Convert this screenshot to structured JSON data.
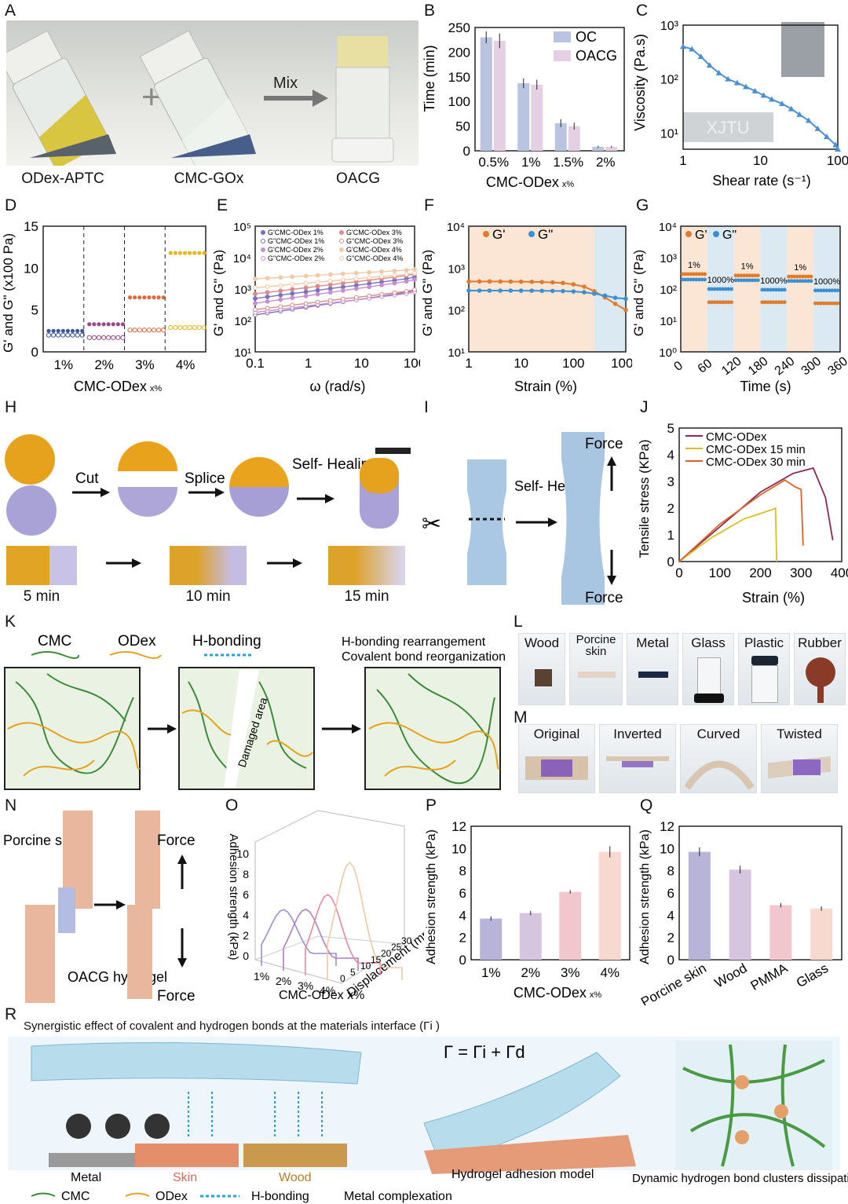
{
  "panels": {
    "A": {
      "label": "A",
      "items": [
        "ODex-APTC",
        "CMC-GOx",
        "OACG"
      ],
      "mix": "Mix"
    },
    "B": {
      "label": "B",
      "ylabel": "Time (min)",
      "xlabel": "CMC-ODex",
      "xlabel_sub": "x%",
      "legend": [
        "OC",
        "OACG"
      ]
    },
    "C": {
      "label": "C",
      "ylabel": "Viscosity (Pa.s)",
      "xlabel": "Shear rate (s⁻¹)",
      "print_text": "XJTU"
    },
    "D": {
      "label": "D",
      "ylabel": "G' and G\" (x100 Pa)",
      "xlabel": "CMC-ODex",
      "xlabel_sub": "x%"
    },
    "E": {
      "label": "E",
      "ylabel": "G' and G\" (Pa)",
      "xlabel": "ω (rad/s)",
      "legend": [
        "G'CMC-ODex 1%",
        "G\"CMC-ODex 1%",
        "G'CMC-ODex 2%",
        "G\"CMC-ODex 2%",
        "G'CMC-ODex 3%",
        "G\"CMC-ODex 3%",
        "G'CMC-ODex 4%",
        "G\"CMC-ODex 4%"
      ]
    },
    "F": {
      "label": "F",
      "ylabel": "G' and G\" (Pa)",
      "xlabel": "Strain (%)",
      "legend": [
        "G'",
        "G\""
      ]
    },
    "G": {
      "label": "G",
      "ylabel": "G' and G\" (Pa)",
      "xlabel": "Time (s)",
      "legend": [
        "G'",
        "G\""
      ],
      "annot": [
        "1%",
        "1000%",
        "1%",
        "1000%",
        "1%",
        "1000%"
      ]
    },
    "H": {
      "label": "H",
      "steps": [
        "Cut",
        "Splice",
        "Self-\nHealing"
      ],
      "times": [
        "5 min",
        "10 min",
        "15 min"
      ]
    },
    "I": {
      "label": "I",
      "step": "Self-\nHealing",
      "force": "Force"
    },
    "J": {
      "label": "J",
      "ylabel": "Tensile stress (KPa)",
      "xlabel": "Strain (%)",
      "legend": [
        "CMC-ODex",
        "CMC-ODex 15 min",
        "CMC-ODex 30 min"
      ]
    },
    "K": {
      "label": "K",
      "legend": [
        "CMC",
        "ODex",
        "H-bonding"
      ],
      "title2": "H-bonding rearrangement",
      "title3": "Covalent bond reorganization",
      "damaged": "Damaged area"
    },
    "L": {
      "label": "L",
      "items": [
        "Wood",
        "Porcine skin",
        "Metal",
        "Glass",
        "Plastic",
        "Rubber"
      ]
    },
    "M": {
      "label": "M",
      "items": [
        "Original",
        "Inverted",
        "Curved",
        "Twisted"
      ]
    },
    "N": {
      "label": "N",
      "skin": "Porcine\nskin",
      "gel": "OACG\nhydrogel",
      "force": "Force"
    },
    "O": {
      "label": "O",
      "zlabel": "Adhesion strength (kPa)",
      "xlabel": "CMC-ODex x%",
      "ylabel": "Displacement (mm)"
    },
    "P": {
      "label": "P",
      "ylabel": "Adhesion strength (kPa)",
      "xlabel": "CMC-ODex",
      "xlabel_sub": "x%"
    },
    "Q": {
      "label": "Q",
      "ylabel": "Adhesion strength (kPa)"
    },
    "R": {
      "label": "R",
      "title": "Synergistic effect of covalent and hydrogen bonds at the materials interface (Γi )",
      "equation": "Γ = Γi + Γd",
      "substrates": [
        "Metal",
        "Skin",
        "Wood"
      ],
      "model": "Hydrogel adhesion model",
      "bulk": "Dynamic hydrogen bond clusters dissipating energy at the bulk (Γd)",
      "legend": [
        "CMC",
        "ODex",
        "H-bonding",
        "Metal complexation"
      ]
    }
  },
  "chart_data": [
    {
      "id": "B",
      "type": "bar",
      "categories": [
        "0.5%",
        "1%",
        "1.5%",
        "2%"
      ],
      "series": [
        {
          "name": "OC",
          "values": [
            230,
            137,
            56,
            8
          ],
          "err": [
            12,
            10,
            8,
            2
          ]
        },
        {
          "name": "OACG",
          "values": [
            223,
            134,
            50,
            8
          ],
          "err": [
            15,
            10,
            7,
            2
          ]
        }
      ],
      "ylim": [
        0,
        250
      ],
      "yticks": [
        0,
        50,
        100,
        150,
        200,
        250
      ]
    },
    {
      "id": "C",
      "type": "line",
      "xscale": "log",
      "yscale": "log",
      "x": [
        1,
        1.3,
        1.7,
        2.2,
        2.9,
        3.8,
        5,
        6.5,
        8.5,
        11,
        14,
        19,
        25,
        32,
        42,
        55,
        72,
        94,
        100
      ],
      "y": [
        400,
        360,
        260,
        180,
        130,
        100,
        85,
        72,
        60,
        50,
        42,
        35,
        28,
        22,
        17,
        12,
        8.5,
        6,
        5
      ],
      "xlim": [
        1,
        100
      ],
      "ylim": [
        5,
        1000
      ],
      "xticks": [
        1,
        10,
        100
      ],
      "yticks": [
        10,
        100,
        1000
      ]
    },
    {
      "id": "D",
      "type": "scatter",
      "groups": [
        "1%",
        "2%",
        "3%",
        "4%"
      ],
      "Gp": [
        2.5,
        3.3,
        6.5,
        11.8
      ],
      "Gpp": [
        2.0,
        1.7,
        2.6,
        2.9
      ],
      "ylim": [
        0,
        15
      ],
      "yticks": [
        0,
        5,
        10,
        15
      ]
    },
    {
      "id": "E",
      "type": "line",
      "xscale": "log",
      "yscale": "log",
      "x": [
        0.1,
        0.17,
        0.3,
        0.5,
        0.9,
        1.5,
        2.6,
        4.5,
        8,
        14,
        24,
        42,
        70,
        100
      ],
      "series": [
        {
          "name": "G'1%",
          "start": 500,
          "end": 2400
        },
        {
          "name": "G\"1%",
          "start": 150,
          "end": 900
        },
        {
          "name": "G'2%",
          "start": 350,
          "end": 2000
        },
        {
          "name": "G\"2%",
          "start": 180,
          "end": 800
        },
        {
          "name": "G'3%",
          "start": 700,
          "end": 3000
        },
        {
          "name": "G\"3%",
          "start": 220,
          "end": 950
        },
        {
          "name": "G'4%",
          "start": 2100,
          "end": 4200
        },
        {
          "name": "G\"4%",
          "start": 1100,
          "end": 3200
        }
      ],
      "xlim": [
        0.1,
        100
      ],
      "ylim": [
        10,
        100000
      ]
    },
    {
      "id": "F",
      "type": "line",
      "xscale": "log",
      "yscale": "log",
      "x": [
        1,
        1.6,
        2.5,
        4,
        6.3,
        10,
        16,
        25,
        40,
        63,
        100,
        160,
        250,
        400,
        630,
        1000
      ],
      "series": [
        {
          "name": "G'",
          "values": [
            480,
            480,
            480,
            478,
            476,
            474,
            470,
            465,
            455,
            440,
            410,
            360,
            280,
            200,
            140,
            100
          ]
        },
        {
          "name": "G\"",
          "values": [
            290,
            290,
            290,
            290,
            290,
            289,
            288,
            287,
            285,
            282,
            276,
            265,
            245,
            220,
            195,
            185
          ]
        }
      ],
      "xlim": [
        1,
        1000
      ],
      "ylim": [
        10,
        10000
      ]
    },
    {
      "id": "G",
      "type": "line",
      "x_segments": [
        [
          0,
          60
        ],
        [
          60,
          120
        ],
        [
          120,
          180
        ],
        [
          180,
          240
        ],
        [
          240,
          300
        ],
        [
          300,
          360
        ]
      ],
      "Gp": [
        300,
        38,
        270,
        38,
        250,
        35
      ],
      "Gpp": [
        200,
        100,
        190,
        95,
        180,
        90
      ],
      "strain": [
        "1%",
        "1000%",
        "1%",
        "1000%",
        "1%",
        "1000%"
      ],
      "xlim": [
        0,
        360
      ],
      "ylim": [
        1,
        10000
      ]
    },
    {
      "id": "J",
      "type": "line",
      "series": [
        {
          "name": "CMC-ODex",
          "x": [
            0,
            100,
            200,
            280,
            330,
            360,
            378
          ],
          "y": [
            0,
            1.3,
            2.6,
            3.3,
            3.5,
            2.4,
            0.8
          ]
        },
        {
          "name": "CMC-ODex 15 min",
          "x": [
            0,
            80,
            160,
            230,
            237,
            240
          ],
          "y": [
            0,
            0.9,
            1.6,
            1.95,
            2.0,
            0.0
          ]
        },
        {
          "name": "CMC-ODex 30 min",
          "x": [
            0,
            100,
            200,
            260,
            285,
            300,
            305
          ],
          "y": [
            0,
            1.4,
            2.5,
            3.05,
            2.8,
            2.7,
            0.6
          ]
        }
      ],
      "xlim": [
        0,
        400
      ],
      "ylim": [
        0,
        5
      ]
    },
    {
      "id": "O",
      "type": "line3d",
      "categories": [
        "1%",
        "2%",
        "3%",
        "4%"
      ],
      "peaks": [
        3.7,
        4.2,
        6.1,
        9.7
      ],
      "displacement_range": [
        0,
        30
      ],
      "zlim": [
        0,
        10
      ]
    },
    {
      "id": "P",
      "type": "bar",
      "categories": [
        "1%",
        "2%",
        "3%",
        "4%"
      ],
      "values": [
        3.7,
        4.2,
        6.1,
        9.7
      ],
      "err": [
        0.2,
        0.2,
        0.15,
        0.5
      ],
      "colors": [
        "#b7b3d9",
        "#d5c5df",
        "#f2c6cd",
        "#f7d9cf"
      ],
      "ylim": [
        0,
        12
      ]
    },
    {
      "id": "Q",
      "type": "bar",
      "categories": [
        "Porcine skin",
        "Wood",
        "PMMA",
        "Glass"
      ],
      "values": [
        9.7,
        8.1,
        4.9,
        4.6
      ],
      "err": [
        0.4,
        0.35,
        0.2,
        0.2
      ],
      "colors": [
        "#b7b3d9",
        "#d5c5df",
        "#f2c6cd",
        "#f7d9cf"
      ],
      "ylim": [
        0,
        12
      ]
    }
  ]
}
